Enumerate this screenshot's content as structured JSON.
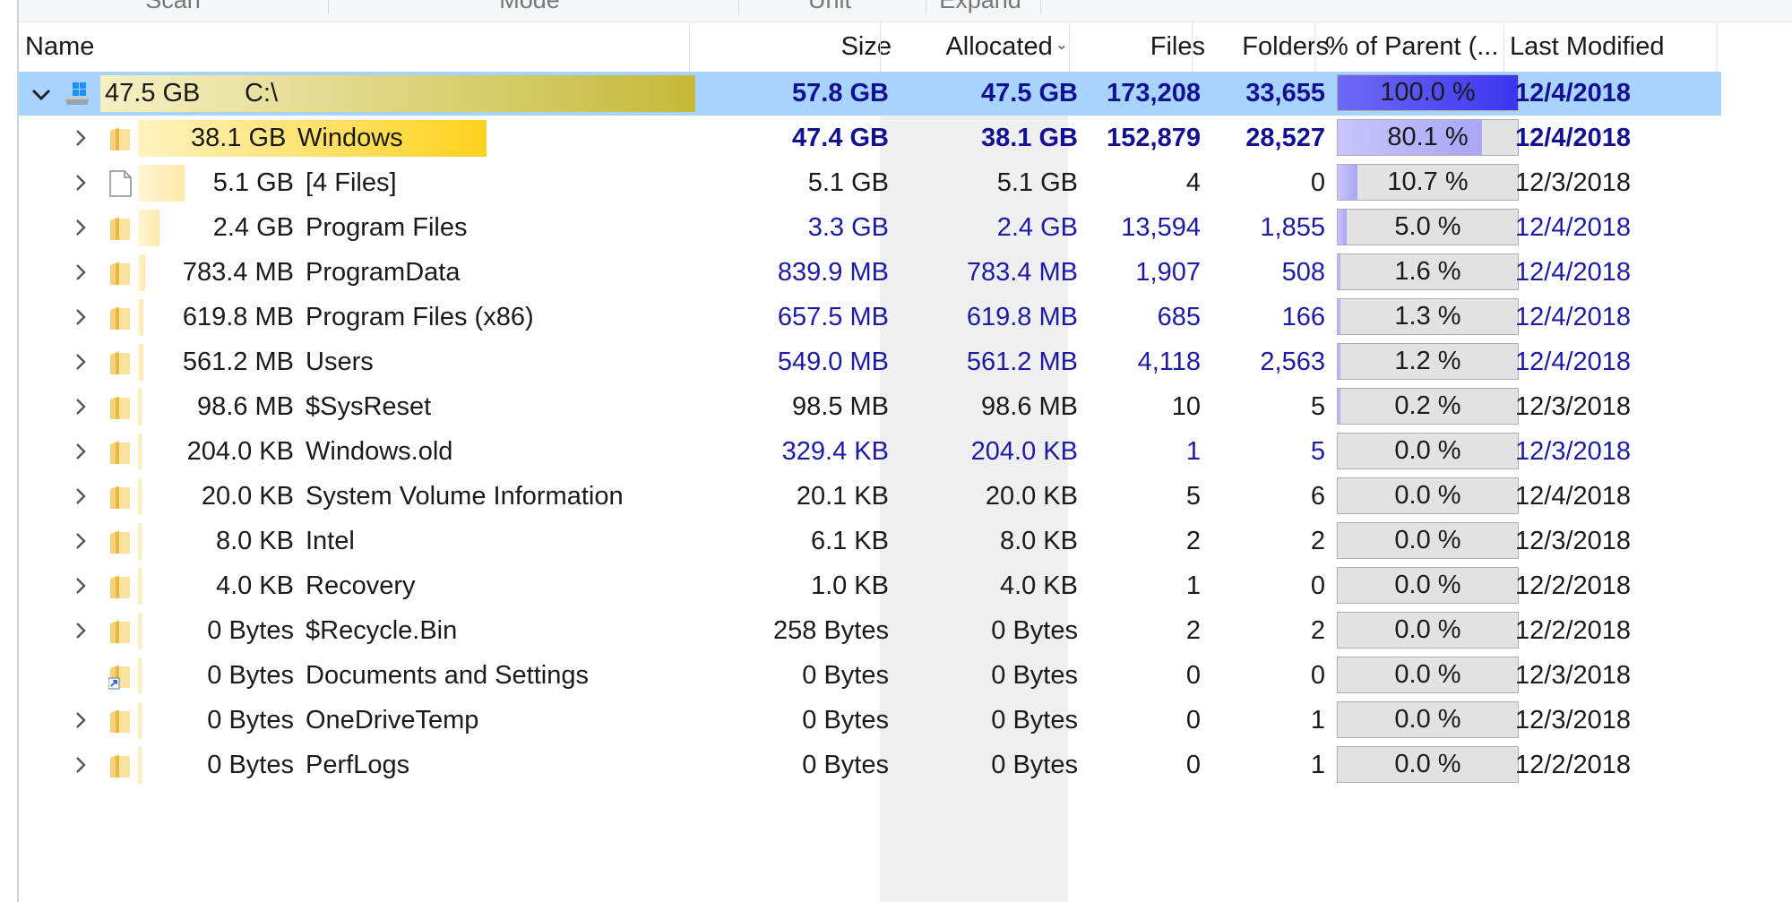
{
  "ribbon": {
    "groups": [
      "Scan",
      "Mode",
      "Unit",
      "Expand"
    ]
  },
  "columns": {
    "name": "Name",
    "size": "Size",
    "allocated": "Allocated",
    "files": "Files",
    "folders": "Folders",
    "percent": "% of Parent (...",
    "modified": "Last Modified"
  },
  "colors": {
    "selection": "#a9d3ff",
    "accent_text": "#1c1ba6",
    "percent_fill": "#a8a6f7",
    "percent_fill_root": "#3a36f0"
  },
  "rows": [
    {
      "icon": "drive-icon",
      "expander": "expanded",
      "style": "root",
      "size_label": "47.5 GB",
      "name": "C:\\",
      "size": "57.8 GB",
      "allocated": "47.5 GB",
      "files": "173,208",
      "folders": "33,655",
      "percent": "100.0 %",
      "percent_value": 100.0,
      "modified": "12/4/2018"
    },
    {
      "icon": "folder-icon",
      "expander": "collapsed",
      "style": "bold",
      "size_label": "38.1 GB",
      "name": "Windows",
      "size": "47.4 GB",
      "allocated": "38.1 GB",
      "files": "152,879",
      "folders": "28,527",
      "percent": "80.1 %",
      "percent_value": 80.1,
      "modified": "12/4/2018"
    },
    {
      "icon": "file-icon",
      "expander": "collapsed",
      "style": "black",
      "size_label": "5.1 GB",
      "name": "[4 Files]",
      "size": "5.1 GB",
      "allocated": "5.1 GB",
      "files": "4",
      "folders": "0",
      "percent": "10.7 %",
      "percent_value": 10.7,
      "modified": "12/3/2018"
    },
    {
      "icon": "folder-icon",
      "expander": "collapsed",
      "style": "blue",
      "size_label": "2.4 GB",
      "name": "Program Files",
      "size": "3.3 GB",
      "allocated": "2.4 GB",
      "files": "13,594",
      "folders": "1,855",
      "percent": "5.0 %",
      "percent_value": 5.0,
      "modified": "12/4/2018"
    },
    {
      "icon": "folder-icon",
      "expander": "collapsed",
      "style": "blue",
      "size_label": "783.4 MB",
      "name": "ProgramData",
      "size": "839.9 MB",
      "allocated": "783.4 MB",
      "files": "1,907",
      "folders": "508",
      "percent": "1.6 %",
      "percent_value": 1.6,
      "modified": "12/4/2018"
    },
    {
      "icon": "folder-icon",
      "expander": "collapsed",
      "style": "blue",
      "size_label": "619.8 MB",
      "name": "Program Files (x86)",
      "size": "657.5 MB",
      "allocated": "619.8 MB",
      "files": "685",
      "folders": "166",
      "percent": "1.3 %",
      "percent_value": 1.3,
      "modified": "12/4/2018"
    },
    {
      "icon": "folder-icon",
      "expander": "collapsed",
      "style": "blue",
      "size_label": "561.2 MB",
      "name": "Users",
      "size": "549.0 MB",
      "allocated": "561.2 MB",
      "files": "4,118",
      "folders": "2,563",
      "percent": "1.2 %",
      "percent_value": 1.2,
      "modified": "12/4/2018"
    },
    {
      "icon": "folder-icon",
      "expander": "collapsed",
      "style": "black",
      "size_label": "98.6 MB",
      "name": "$SysReset",
      "size": "98.5 MB",
      "allocated": "98.6 MB",
      "files": "10",
      "folders": "5",
      "percent": "0.2 %",
      "percent_value": 0.2,
      "modified": "12/3/2018"
    },
    {
      "icon": "folder-icon",
      "expander": "collapsed",
      "style": "blue",
      "size_label": "204.0 KB",
      "name": "Windows.old",
      "size": "329.4 KB",
      "allocated": "204.0 KB",
      "files": "1",
      "folders": "5",
      "percent": "0.0 %",
      "percent_value": 0.0,
      "modified": "12/3/2018"
    },
    {
      "icon": "folder-icon",
      "expander": "collapsed",
      "style": "black",
      "size_label": "20.0 KB",
      "name": "System Volume Information",
      "size": "20.1 KB",
      "allocated": "20.0 KB",
      "files": "5",
      "folders": "6",
      "percent": "0.0 %",
      "percent_value": 0.0,
      "modified": "12/4/2018"
    },
    {
      "icon": "folder-icon",
      "expander": "collapsed",
      "style": "black",
      "size_label": "8.0 KB",
      "name": "Intel",
      "size": "6.1 KB",
      "allocated": "8.0 KB",
      "files": "2",
      "folders": "2",
      "percent": "0.0 %",
      "percent_value": 0.0,
      "modified": "12/3/2018"
    },
    {
      "icon": "folder-icon",
      "expander": "collapsed",
      "style": "black",
      "size_label": "4.0 KB",
      "name": "Recovery",
      "size": "1.0 KB",
      "allocated": "4.0 KB",
      "files": "1",
      "folders": "0",
      "percent": "0.0 %",
      "percent_value": 0.0,
      "modified": "12/2/2018"
    },
    {
      "icon": "folder-icon",
      "expander": "collapsed",
      "style": "black",
      "size_label": "0 Bytes",
      "name": "$Recycle.Bin",
      "size": "258 Bytes",
      "allocated": "0 Bytes",
      "files": "2",
      "folders": "2",
      "percent": "0.0 %",
      "percent_value": 0.0,
      "modified": "12/2/2018"
    },
    {
      "icon": "shortcut-folder-icon",
      "expander": "none",
      "style": "black",
      "size_label": "0 Bytes",
      "name": "Documents and Settings",
      "size": "0 Bytes",
      "allocated": "0 Bytes",
      "files": "0",
      "folders": "0",
      "percent": "0.0 %",
      "percent_value": 0.0,
      "modified": "12/3/2018"
    },
    {
      "icon": "folder-icon",
      "expander": "collapsed",
      "style": "black",
      "size_label": "0 Bytes",
      "name": "OneDriveTemp",
      "size": "0 Bytes",
      "allocated": "0 Bytes",
      "files": "0",
      "folders": "1",
      "percent": "0.0 %",
      "percent_value": 0.0,
      "modified": "12/3/2018"
    },
    {
      "icon": "folder-icon",
      "expander": "collapsed",
      "style": "black",
      "size_label": "0 Bytes",
      "name": "PerfLogs",
      "size": "0 Bytes",
      "allocated": "0 Bytes",
      "files": "0",
      "folders": "1",
      "percent": "0.0 %",
      "percent_value": 0.0,
      "modified": "12/2/2018"
    }
  ]
}
